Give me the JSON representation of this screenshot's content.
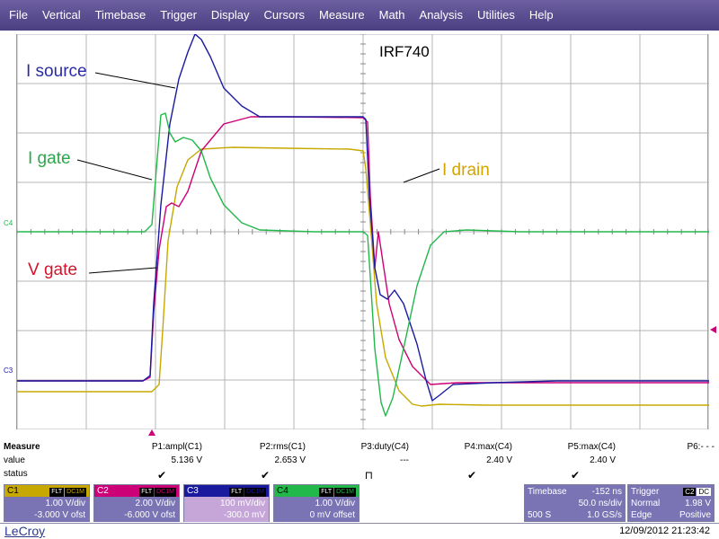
{
  "menu": [
    "File",
    "Vertical",
    "Timebase",
    "Trigger",
    "Display",
    "Cursors",
    "Measure",
    "Math",
    "Analysis",
    "Utilities",
    "Help"
  ],
  "screen": {
    "title": "IRF740",
    "labels": {
      "i_source": "I source",
      "i_gate": "I gate",
      "v_gate": "V gate",
      "i_drain": "I drain"
    },
    "markers": {
      "c4": "C4",
      "c3": "C3"
    }
  },
  "colors": {
    "c1": "#c7a800",
    "c2": "#cc0077",
    "c3": "#1a1a9e",
    "c4": "#22b84a",
    "grid": "#b5b5b5",
    "menubar": "#5a4d92"
  },
  "measure": {
    "row_labels": [
      "Measure",
      "value",
      "status"
    ],
    "params": [
      {
        "name": "P1:ampl(C1)",
        "value": "5.136 V",
        "status": "✔"
      },
      {
        "name": "P2:rms(C1)",
        "value": "2.653 V",
        "status": "✔"
      },
      {
        "name": "P3:duty(C4)",
        "value": "---",
        "status": "⊓"
      },
      {
        "name": "P4:max(C4)",
        "value": "2.40 V",
        "status": "✔"
      },
      {
        "name": "P5:max(C4)",
        "value": "2.40 V",
        "status": "✔"
      },
      {
        "name": "P6:- - -",
        "value": "",
        "status": ""
      }
    ]
  },
  "channels": [
    {
      "name": "C1",
      "badges": [
        "FLT",
        "DC1M"
      ],
      "line1": "1.00 V/div",
      "line2": "-3.000 V ofst"
    },
    {
      "name": "C2",
      "badges": [
        "FLT",
        "DC1M"
      ],
      "line1": "2.00 V/div",
      "line2": "-6.000 V ofst"
    },
    {
      "name": "C3",
      "badges": [
        "FLT",
        "DC1M"
      ],
      "line1": "100 mV/div",
      "line2": "-300.0 mV"
    },
    {
      "name": "C4",
      "badges": [
        "FLT",
        "DC1M"
      ],
      "line1": "1.00 V/div",
      "line2": "0 mV offset"
    }
  ],
  "timebase": {
    "label": "Timebase",
    "delay": "-152 ns",
    "div": "50.0 ns/div",
    "samples": "500 S",
    "rate": "1.0 GS/s"
  },
  "trigger": {
    "label": "Trigger",
    "badges": [
      "C2",
      "DC"
    ],
    "mode": "Normal",
    "level": "1.98 V",
    "type": "Edge",
    "slope": "Positive"
  },
  "brand": "LeCroy",
  "datetime": "12/09/2012 21:23:42"
}
